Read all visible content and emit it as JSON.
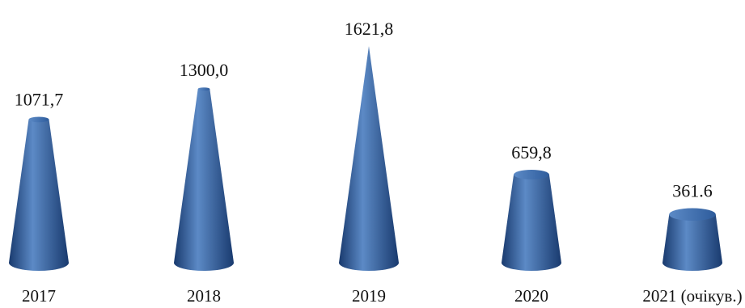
{
  "chart_data": {
    "type": "bar",
    "bar_shape": "cone",
    "categories": [
      "2017",
      "2018",
      "2019",
      "2020",
      "2021 (очікув.)"
    ],
    "values": [
      1071.7,
      1300.0,
      1621.8,
      659.8,
      361.6
    ],
    "value_labels": [
      "1071,7",
      "1300,0",
      "1621,8",
      "659,8",
      "361.6"
    ],
    "title": "",
    "xlabel": "",
    "ylabel": "",
    "ylim": [
      0,
      1621.8
    ],
    "grid": false,
    "legend": "none",
    "colors": {
      "bar": "#2e5c9c",
      "bar_light": "#5c8ac6",
      "bar_dark": "#193a6e",
      "text": "#111111"
    }
  }
}
